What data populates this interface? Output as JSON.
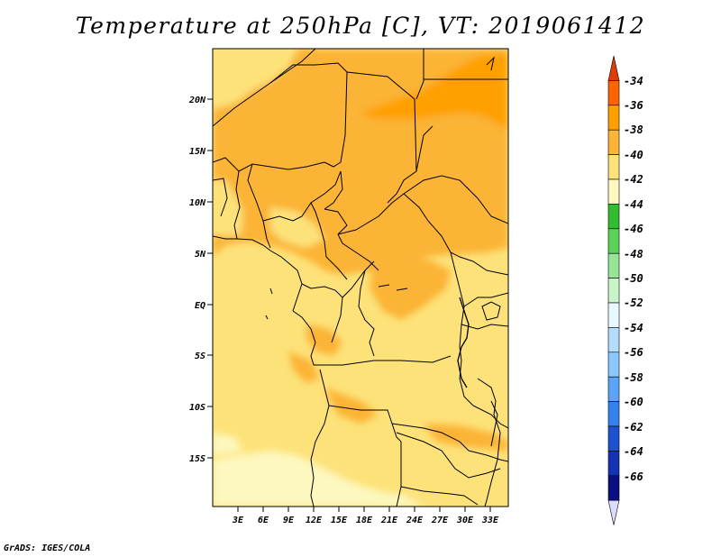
{
  "title": "Temperature at 250hPa [C], VT: 2019061412",
  "credit": "GrADS: IGES/COLA",
  "map": {
    "lat_labels": [
      "20N",
      "15N",
      "10N",
      "5N",
      "EQ",
      "5S",
      "10S",
      "15S"
    ],
    "lon_labels": [
      "3E",
      "6E",
      "9E",
      "12E",
      "15E",
      "18E",
      "21E",
      "24E",
      "27E",
      "30E",
      "33E"
    ]
  },
  "legend": {
    "levels": [
      "-34",
      "-36",
      "-38",
      "-40",
      "-42",
      "-44",
      "-46",
      "-48",
      "-50",
      "-52",
      "-54",
      "-56",
      "-58",
      "-60",
      "-62",
      "-64",
      "-66"
    ],
    "colors": [
      "#e03c0a",
      "#ff6400",
      "#ffa000",
      "#fbb434",
      "#fde27a",
      "#fdf8c0",
      "#30be30",
      "#5ad25a",
      "#96e696",
      "#c8f5c8",
      "#e8f8ff",
      "#b4dcff",
      "#8cc8ff",
      "#5aa5f5",
      "#3282f0",
      "#1e50d2",
      "#1432b4",
      "#0a0f82",
      "#dcdcff"
    ]
  }
}
